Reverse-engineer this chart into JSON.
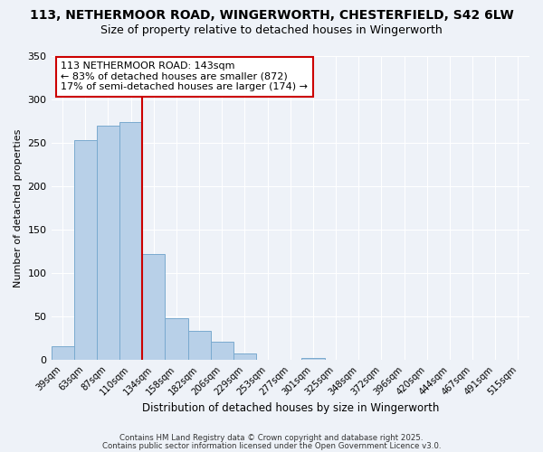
{
  "title": "113, NETHERMOOR ROAD, WINGERWORTH, CHESTERFIELD, S42 6LW",
  "subtitle": "Size of property relative to detached houses in Wingerworth",
  "xlabel": "Distribution of detached houses by size in Wingerworth",
  "ylabel": "Number of detached properties",
  "bin_labels": [
    "39sqm",
    "63sqm",
    "87sqm",
    "110sqm",
    "134sqm",
    "158sqm",
    "182sqm",
    "206sqm",
    "229sqm",
    "253sqm",
    "277sqm",
    "301sqm",
    "325sqm",
    "348sqm",
    "372sqm",
    "396sqm",
    "420sqm",
    "444sqm",
    "467sqm",
    "491sqm",
    "515sqm"
  ],
  "bar_heights": [
    16,
    253,
    269,
    274,
    122,
    48,
    34,
    21,
    8,
    0,
    0,
    3,
    0,
    0,
    0,
    0,
    0,
    0,
    0,
    0,
    1
  ],
  "bar_color": "#b8d0e8",
  "bar_edge_color": "#7aaacf",
  "vline_color": "#cc0000",
  "annotation_line1": "113 NETHERMOOR ROAD: 143sqm",
  "annotation_line2": "← 83% of detached houses are smaller (872)",
  "annotation_line3": "17% of semi-detached houses are larger (174) →",
  "annotation_box_color": "#cc0000",
  "ylim": [
    0,
    350
  ],
  "yticks": [
    0,
    50,
    100,
    150,
    200,
    250,
    300,
    350
  ],
  "background_color": "#eef2f8",
  "plot_bg_color": "#eef2f8",
  "footer_line1": "Contains HM Land Registry data © Crown copyright and database right 2025.",
  "footer_line2": "Contains public sector information licensed under the Open Government Licence v3.0.",
  "title_fontsize": 10,
  "subtitle_fontsize": 9
}
